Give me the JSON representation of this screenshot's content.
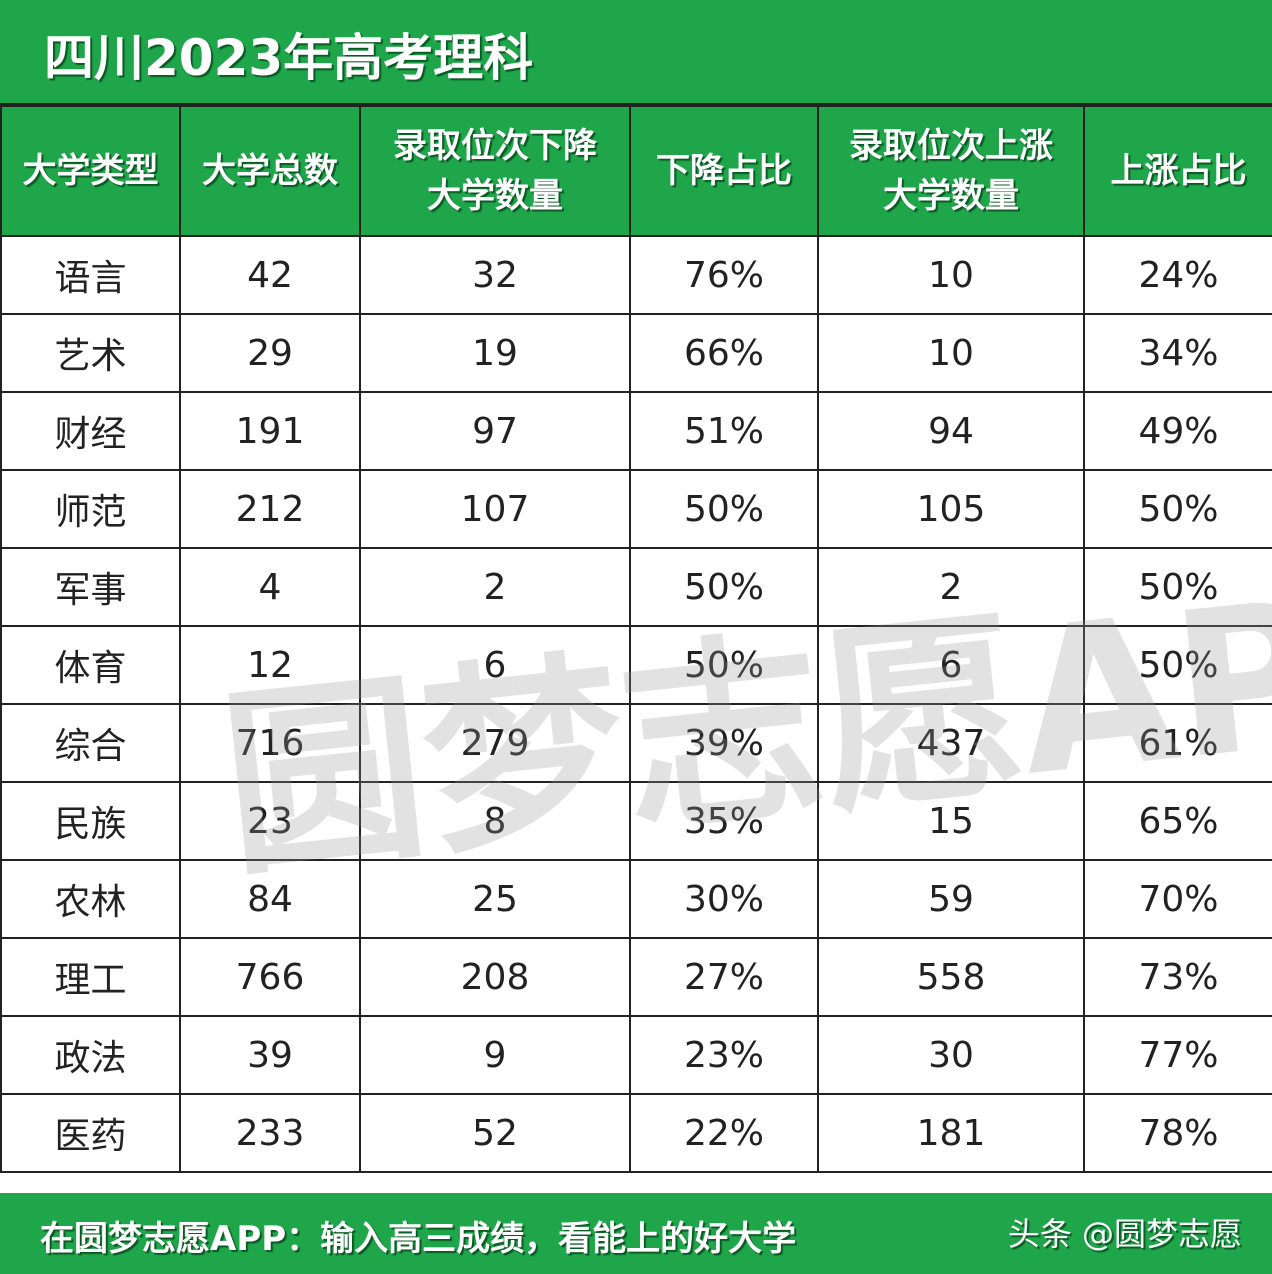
{
  "title": "四川2023年高考理科",
  "chart_data": {
    "type": "table",
    "title": "四川2023年高考理科",
    "columns": [
      "大学类型",
      "大学总数",
      "录取位次下降\n大学数量",
      "下降占比",
      "录取位次上涨\n大学数量",
      "上涨占比"
    ],
    "rows": [
      [
        "语言",
        "42",
        "32",
        "76%",
        "10",
        "24%"
      ],
      [
        "艺术",
        "29",
        "19",
        "66%",
        "10",
        "34%"
      ],
      [
        "财经",
        "191",
        "97",
        "51%",
        "94",
        "49%"
      ],
      [
        "师范",
        "212",
        "107",
        "50%",
        "105",
        "50%"
      ],
      [
        "军事",
        "4",
        "2",
        "50%",
        "2",
        "50%"
      ],
      [
        "体育",
        "12",
        "6",
        "50%",
        "6",
        "50%"
      ],
      [
        "综合",
        "716",
        "279",
        "39%",
        "437",
        "61%"
      ],
      [
        "民族",
        "23",
        "8",
        "35%",
        "15",
        "65%"
      ],
      [
        "农林",
        "84",
        "25",
        "30%",
        "59",
        "70%"
      ],
      [
        "理工",
        "766",
        "208",
        "27%",
        "558",
        "73%"
      ],
      [
        "政法",
        "39",
        "9",
        "23%",
        "30",
        "77%"
      ],
      [
        "医药",
        "233",
        "52",
        "22%",
        "181",
        "78%"
      ]
    ]
  },
  "footer": {
    "slogan": "在圆梦志愿APP：输入高三成绩，看能上的好大学",
    "credit": "头条 @圆梦志愿"
  },
  "watermark": "圆梦志愿APP",
  "colors": {
    "accent": "#1fa64a",
    "text": "#222222"
  }
}
